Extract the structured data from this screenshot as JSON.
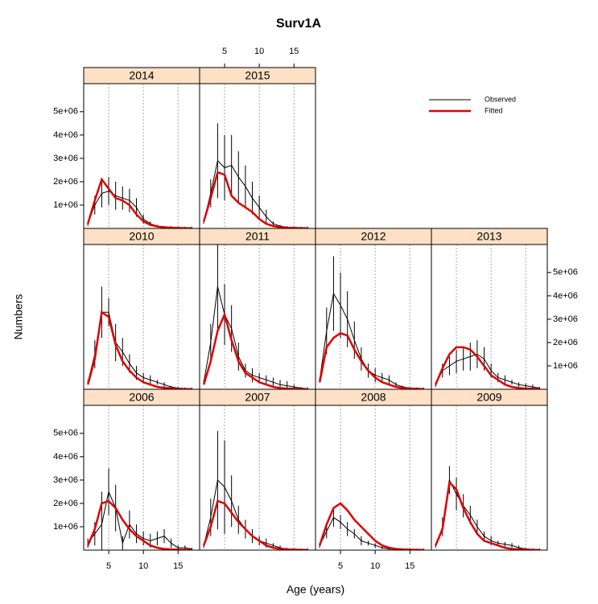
{
  "chart_data": {
    "type": "line",
    "title": "Surv1A",
    "xlabel": "Age (years)",
    "ylabel": "Numbers",
    "xlim": [
      1.4,
      18.1
    ],
    "ylim": [
      0,
      6200000
    ],
    "xticks": [
      5,
      10,
      15
    ],
    "yticks": [
      {
        "value": 1000000,
        "label": "1e+06"
      },
      {
        "value": 2000000,
        "label": "2e+06"
      },
      {
        "value": 3000000,
        "label": "3e+06"
      },
      {
        "value": 4000000,
        "label": "4e+06"
      },
      {
        "value": 5000000,
        "label": "5e+06"
      }
    ],
    "grid": true,
    "series": [
      {
        "name": "Observed",
        "color": "#000000"
      },
      {
        "name": "Fitted",
        "color": "#e00000"
      }
    ],
    "x": [
      2,
      3,
      4,
      5,
      6,
      7,
      8,
      9,
      10,
      11,
      12,
      13,
      14,
      15,
      16,
      17
    ],
    "panels": [
      {
        "title": "2014",
        "observed": [
          200000.0,
          1000000.0,
          1500000.0,
          1600000.0,
          1400000.0,
          1300000.0,
          1200000.0,
          900000.0,
          400000.0,
          200000.0,
          100000.0,
          50000.0,
          50000.0,
          30000.0,
          20000.0,
          20000.0
        ],
        "errors": [
          100000.0,
          400000.0,
          600000.0,
          600000.0,
          600000.0,
          500000.0,
          500000.0,
          400000.0,
          200000.0,
          100000.0,
          50000.0,
          50000.0,
          50000.0,
          50000.0,
          50000.0,
          50000.0
        ],
        "fitted": [
          200000.0,
          1200000.0,
          2100000.0,
          1700000.0,
          1300000.0,
          1200000.0,
          1000000.0,
          600000.0,
          300000.0,
          150000.0,
          80000.0,
          50000.0,
          30000.0,
          20000.0,
          10000.0,
          10000.0
        ]
      },
      {
        "title": "2015",
        "observed": [
          300000.0,
          1500000.0,
          2900000.0,
          2600000.0,
          2700000.0,
          2200000.0,
          1800000.0,
          1300000.0,
          900000.0,
          500000.0,
          200000.0,
          100000.0,
          50000.0,
          30000.0,
          20000.0,
          20000.0
        ],
        "errors": [
          100000.0,
          600000.0,
          1600000.0,
          1400000.0,
          1300000.0,
          1100000.0,
          900000.0,
          700000.0,
          500000.0,
          300000.0,
          100000.0,
          50000.0,
          50000.0,
          50000.0,
          50000.0,
          50000.0
        ],
        "fitted": [
          300000.0,
          1300000.0,
          2400000.0,
          2300000.0,
          1400000.0,
          1100000.0,
          900000.0,
          700000.0,
          400000.0,
          200000.0,
          100000.0,
          50000.0,
          30000.0,
          20000.0,
          10000.0,
          10000.0
        ]
      },
      {
        "title": "2010",
        "observed": [
          300000.0,
          1500000.0,
          3300000.0,
          3300000.0,
          2000000.0,
          1600000.0,
          1100000.0,
          700000.0,
          500000.0,
          400000.0,
          300000.0,
          200000.0,
          100000.0,
          50000.0,
          30000.0,
          20000.0
        ],
        "errors": [
          100000.0,
          600000.0,
          1100000.0,
          600000.0,
          800000.0,
          600000.0,
          400000.0,
          300000.0,
          200000.0,
          200000.0,
          100000.0,
          100000.0,
          50000.0,
          50000.0,
          50000.0,
          50000.0
        ],
        "fitted": [
          200000.0,
          1300000.0,
          3300000.0,
          3100000.0,
          1900000.0,
          1200000.0,
          800000.0,
          500000.0,
          300000.0,
          200000.0,
          100000.0,
          60000.0,
          40000.0,
          20000.0,
          10000.0,
          10000.0
        ]
      },
      {
        "title": "2011",
        "observed": [
          300000.0,
          2000000.0,
          4400000.0,
          3200000.0,
          2600000.0,
          1400000.0,
          800000.0,
          600000.0,
          500000.0,
          400000.0,
          300000.0,
          200000.0,
          150000.0,
          100000.0,
          50000.0,
          30000.0
        ],
        "errors": [
          100000.0,
          800000.0,
          1800000.0,
          1300000.0,
          1000000.0,
          600000.0,
          300000.0,
          300000.0,
          200000.0,
          200000.0,
          200000.0,
          200000.0,
          200000.0,
          100000.0,
          50000.0,
          50000.0
        ],
        "fitted": [
          200000.0,
          1200000.0,
          2500000.0,
          3200000.0,
          2100000.0,
          1200000.0,
          700000.0,
          500000.0,
          300000.0,
          200000.0,
          100000.0,
          50000.0,
          30000.0,
          20000.0,
          10000.0,
          10000.0
        ]
      },
      {
        "title": "2012",
        "observed": [
          400000.0,
          2500000.0,
          4100000.0,
          3600000.0,
          3000000.0,
          2100000.0,
          1300000.0,
          800000.0,
          600000.0,
          500000.0,
          400000.0,
          200000.0,
          100000.0,
          50000.0,
          30000.0,
          20000.0
        ],
        "errors": [
          100000.0,
          1000000.0,
          1600000.0,
          1400000.0,
          1200000.0,
          800000.0,
          500000.0,
          300000.0,
          300000.0,
          200000.0,
          200000.0,
          100000.0,
          50000.0,
          50000.0,
          50000.0,
          50000.0
        ],
        "fitted": [
          300000.0,
          1800000.0,
          2200000.0,
          2400000.0,
          2300000.0,
          1700000.0,
          1200000.0,
          800000.0,
          500000.0,
          300000.0,
          200000.0,
          100000.0,
          50000.0,
          30000.0,
          20000.0,
          10000.0
        ]
      },
      {
        "title": "2013",
        "observed": [
          200000.0,
          800000.0,
          1000000.0,
          1200000.0,
          1300000.0,
          1400000.0,
          1500000.0,
          1300000.0,
          800000.0,
          500000.0,
          400000.0,
          300000.0,
          200000.0,
          150000.0,
          100000.0,
          50000.0
        ],
        "errors": [
          100000.0,
          300000.0,
          400000.0,
          500000.0,
          500000.0,
          600000.0,
          600000.0,
          500000.0,
          300000.0,
          200000.0,
          200000.0,
          100000.0,
          100000.0,
          100000.0,
          100000.0,
          50000.0
        ],
        "fitted": [
          200000.0,
          900000.0,
          1500000.0,
          1800000.0,
          1800000.0,
          1700000.0,
          1400000.0,
          1000000.0,
          600000.0,
          400000.0,
          200000.0,
          100000.0,
          50000.0,
          30000.0,
          20000.0,
          10000.0
        ]
      },
      {
        "title": "2006",
        "observed": [
          300000.0,
          700000.0,
          1100000.0,
          2500000.0,
          1800000.0,
          300000.0,
          1100000.0,
          700000.0,
          500000.0,
          400000.0,
          500000.0,
          600000.0,
          300000.0,
          100000.0,
          100000.0,
          50000.0
        ],
        "errors": [
          200000.0,
          500000.0,
          1400000.0,
          1000000.0,
          1000000.0,
          300000.0,
          600000.0,
          400000.0,
          300000.0,
          300000.0,
          300000.0,
          300000.0,
          200000.0,
          100000.0,
          100000.0,
          50000.0
        ],
        "fitted": [
          200000.0,
          900000.0,
          2000000.0,
          2100000.0,
          1800000.0,
          1300000.0,
          900000.0,
          600000.0,
          400000.0,
          200000.0,
          100000.0,
          50000.0,
          30000.0,
          20000.0,
          10000.0,
          10000.0
        ]
      },
      {
        "title": "2007",
        "observed": [
          200000.0,
          1400000.0,
          3000000.0,
          2700000.0,
          2100000.0,
          1300000.0,
          900000.0,
          600000.0,
          400000.0,
          300000.0,
          200000.0,
          100000.0,
          50000.0,
          30000.0,
          20000.0,
          20000.0
        ],
        "errors": [
          100000.0,
          800000.0,
          2100000.0,
          2000000.0,
          1100000.0,
          600000.0,
          400000.0,
          300000.0,
          200000.0,
          200000.0,
          100000.0,
          100000.0,
          50000.0,
          50000.0,
          50000.0,
          50000.0
        ],
        "fitted": [
          200000.0,
          1000000.0,
          2100000.0,
          2000000.0,
          1600000.0,
          1200000.0,
          900000.0,
          600000.0,
          400000.0,
          200000.0,
          100000.0,
          50000.0,
          30000.0,
          20000.0,
          10000.0,
          10000.0
        ]
      },
      {
        "title": "2008",
        "observed": [
          200000.0,
          800000.0,
          1400000.0,
          1200000.0,
          900000.0,
          700000.0,
          400000.0,
          300000.0,
          200000.0,
          100000.0,
          50000.0,
          30000.0,
          20000.0,
          10000.0,
          10000.0,
          10000.0
        ],
        "errors": [
          100000.0,
          300000.0,
          400000.0,
          300000.0,
          300000.0,
          200000.0,
          200000.0,
          100000.0,
          100000.0,
          50000.0,
          50000.0,
          50000.0,
          50000.0,
          50000.0,
          50000.0,
          50000.0
        ],
        "fitted": [
          200000.0,
          1100000.0,
          1800000.0,
          2000000.0,
          1700000.0,
          1300000.0,
          1000000.0,
          700000.0,
          400000.0,
          200000.0,
          100000.0,
          50000.0,
          30000.0,
          20000.0,
          10000.0,
          10000.0
        ]
      },
      {
        "title": "2009",
        "observed": [
          200000.0,
          1000000.0,
          3000000.0,
          2400000.0,
          1900000.0,
          1500000.0,
          1000000.0,
          600000.0,
          400000.0,
          300000.0,
          250000.0,
          200000.0,
          100000.0,
          50000.0,
          30000.0,
          20000.0
        ],
        "errors": [
          100000.0,
          400000.0,
          600000.0,
          700000.0,
          500000.0,
          400000.0,
          300000.0,
          200000.0,
          200000.0,
          100000.0,
          100000.0,
          100000.0,
          100000.0,
          50000.0,
          50000.0,
          50000.0
        ],
        "fitted": [
          200000.0,
          900000.0,
          2900000.0,
          2600000.0,
          1800000.0,
          1200000.0,
          700000.0,
          400000.0,
          300000.0,
          200000.0,
          100000.0,
          50000.0,
          30000.0,
          20000.0,
          10000.0,
          10000.0
        ]
      }
    ]
  }
}
